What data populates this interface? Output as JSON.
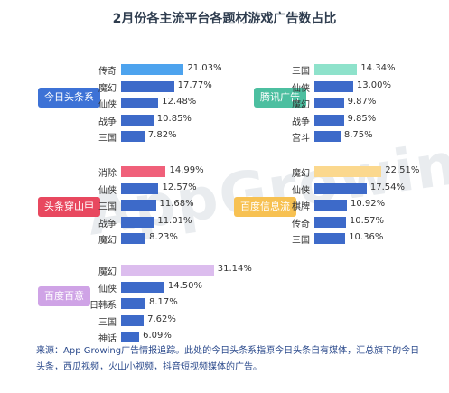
{
  "title": "2月份各主流平台各题材游戏广告数占比",
  "watermark": "AppGrowing",
  "source": "来源：App Growing广告情报追踪。此处的今日头条系指原今日头条自有媒体，汇总旗下的今日头条，西瓜视频，火山小视频，抖音短视频媒体的广告。",
  "chart_data": [
    {
      "type": "bar",
      "platform": "今日头条系",
      "badge_color": "#3d72d6",
      "highlight_color": "#4da3ee",
      "bar_color": "#3d6ac9",
      "categories": [
        "传奇",
        "魔幻",
        "仙侠",
        "战争",
        "三国"
      ],
      "values": [
        21.03,
        17.77,
        12.48,
        10.85,
        7.82
      ],
      "labels": [
        "21.03%",
        "17.77%",
        "12.48%",
        "10.85%",
        "7.82%"
      ]
    },
    {
      "type": "bar",
      "platform": "腾讯广告",
      "badge_color": "#4cbfa0",
      "highlight_color": "#8ee2cb",
      "bar_color": "#3d6ac9",
      "categories": [
        "三国",
        "仙侠",
        "魔幻",
        "战争",
        "宫斗"
      ],
      "values": [
        14.34,
        13.0,
        9.87,
        9.85,
        8.75
      ],
      "labels": [
        "14.34%",
        "13.00%",
        "9.87%",
        "9.85%",
        "8.75%"
      ]
    },
    {
      "type": "bar",
      "platform": "头条穿山甲",
      "badge_color": "#e8485f",
      "highlight_color": "#f0607a",
      "bar_color": "#3d6ac9",
      "categories": [
        "消除",
        "仙侠",
        "三国",
        "战争",
        "魔幻"
      ],
      "values": [
        14.99,
        12.57,
        11.68,
        11.01,
        8.23
      ],
      "labels": [
        "14.99%",
        "12.57%",
        "11.68%",
        "11.01%",
        "8.23%"
      ]
    },
    {
      "type": "bar",
      "platform": "百度信息流",
      "badge_color": "#f7c152",
      "highlight_color": "#fbd88e",
      "bar_color": "#3d6ac9",
      "categories": [
        "魔幻",
        "仙侠",
        "棋牌",
        "传奇",
        "三国"
      ],
      "values": [
        22.51,
        17.54,
        10.92,
        10.57,
        10.36
      ],
      "labels": [
        "22.51%",
        "17.54%",
        "10.92%",
        "10.57%",
        "10.36%"
      ]
    },
    {
      "type": "bar",
      "platform": "百度百意",
      "badge_color": "#cfa3e6",
      "highlight_color": "#dcbdee",
      "bar_color": "#3d6ac9",
      "categories": [
        "魔幻",
        "仙侠",
        "日韩系",
        "三国",
        "神话"
      ],
      "values": [
        31.14,
        14.5,
        8.17,
        7.62,
        6.09
      ],
      "labels": [
        "31.14%",
        "14.50%",
        "8.17%",
        "7.62%",
        "6.09%"
      ]
    }
  ]
}
